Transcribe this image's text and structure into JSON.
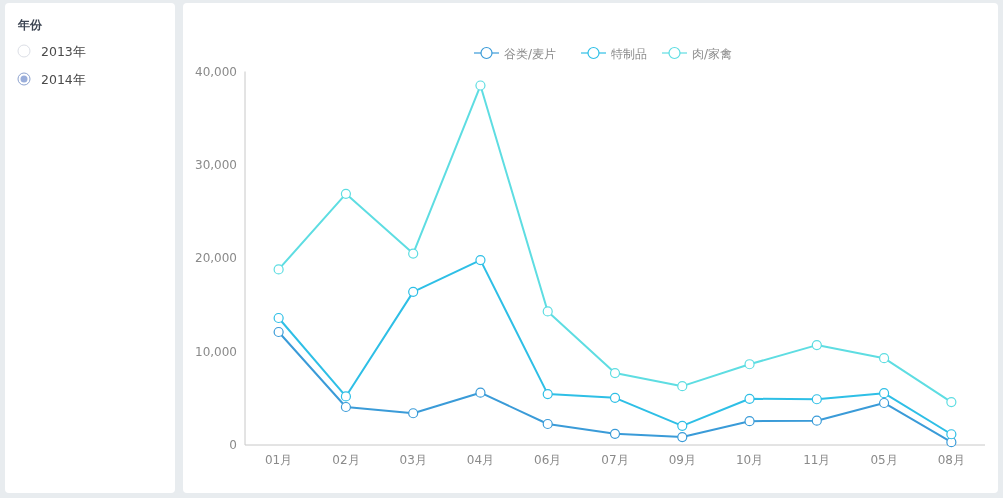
{
  "chart_data": [
    {
      "type": "other",
      "title": "年份",
      "annotations": [
        "2013年",
        "2014年"
      ]
    },
    {
      "type": "line",
      "categories": [
        "01月",
        "02月",
        "03月",
        "04月",
        "06月",
        "07月",
        "09月",
        "10月",
        "11月",
        "05月",
        "08月"
      ],
      "series": [
        {
          "name": "谷类/麦片",
          "color": "#3a9bd8",
          "values": [
            12100,
            4070,
            3400,
            5600,
            2250,
            1200,
            850,
            2550,
            2600,
            4500,
            300
          ]
        },
        {
          "name": "特制品",
          "color": "#2ebfe6",
          "values": [
            13600,
            5200,
            16400,
            19800,
            5450,
            5050,
            2050,
            4950,
            4900,
            5550,
            1150
          ]
        },
        {
          "name": "肉/家禽",
          "color": "#5edde2",
          "values": [
            18800,
            26900,
            20500,
            38500,
            14300,
            7700,
            6300,
            8650,
            10700,
            9300,
            4600
          ]
        }
      ],
      "ylim": [
        0,
        40000
      ],
      "yticks": [
        {
          "value": 0,
          "label": "0"
        },
        {
          "value": 10000,
          "label": "10,000"
        },
        {
          "value": 20000,
          "label": "20,000"
        },
        {
          "value": 30000,
          "label": "30,000"
        },
        {
          "value": 40000,
          "label": "40,000"
        }
      ],
      "grid": false,
      "legend": "top",
      "marker": "circle",
      "line_style": "solid"
    }
  ]
}
